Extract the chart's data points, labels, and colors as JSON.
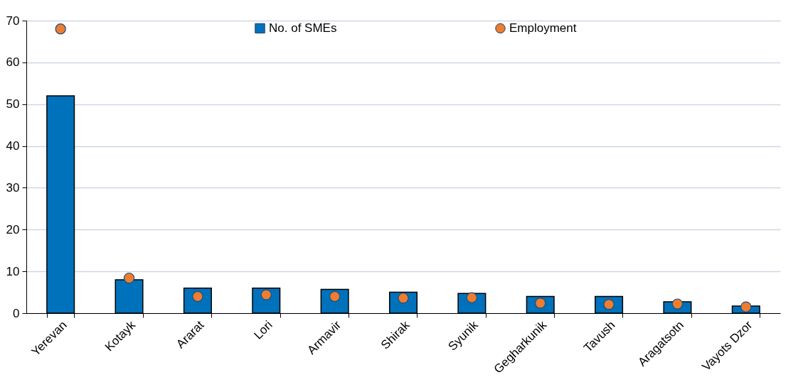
{
  "chart_data": {
    "type": "bar",
    "categories": [
      "Yerevan",
      "Kotayk",
      "Ararat",
      "Lori",
      "Armavir",
      "Shirak",
      "Syunik",
      "Gegharkunik",
      "Tavush",
      "Aragatsotn",
      "Vayots Dzor"
    ],
    "series": [
      {
        "name": "No. of SMEs",
        "color": "#0072bc",
        "values": [
          52,
          8,
          6,
          6,
          5.7,
          5,
          4.7,
          4,
          4,
          2.7,
          1.7
        ]
      },
      {
        "name": "Employment",
        "type": "scatter",
        "color": "#ed7d31",
        "values": [
          68,
          8.4,
          4,
          4.4,
          4,
          3.6,
          3.7,
          2.4,
          2.1,
          2.2,
          1.5
        ]
      }
    ],
    "ylim": [
      0,
      70
    ],
    "yticks": [
      0,
      10,
      20,
      30,
      40,
      50,
      60,
      70
    ],
    "grid": "y",
    "legend": "top",
    "marker": "circle"
  }
}
